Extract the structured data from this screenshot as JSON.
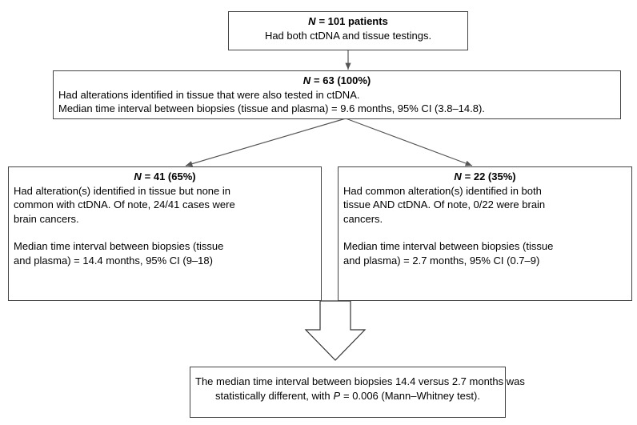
{
  "nodes": [
    {
      "heading": {
        "var": "N",
        "rest": "= 101 patients"
      },
      "paragraphs": [
        [
          "Had both ctDNA and tissue testings."
        ]
      ]
    },
    {
      "heading": {
        "var": "N",
        "rest": "= 63 (100%)"
      },
      "paragraphs": [
        [
          "Had alterations identified in tissue that were also tested in ctDNA.",
          "Median time interval between biopsies (tissue and plasma) = 9.6 months, 95% CI  (3.8–14.8)."
        ]
      ]
    },
    {
      "heading": {
        "var": "N",
        "rest": "= 41 (65%)"
      },
      "paragraphs": [
        [
          "Had alteration(s) identified in tissue but none in",
          "common with ctDNA. Of note, 24/41 cases were",
          "brain cancers."
        ],
        [
          "Median time interval between biopsies (tissue",
          "and plasma) = 14.4 months, 95% CI (9–18)"
        ]
      ]
    },
    {
      "heading": {
        "var": "N",
        "rest": "= 22 (35%)"
      },
      "paragraphs": [
        [
          "Had common alteration(s) identified in both",
          "tissue AND ctDNA. Of note, 0/22 were brain",
          "cancers."
        ],
        [
          "Median time interval between biopsies (tissue",
          "and plasma) = 2.7 months, 95% CI (0.7–9)"
        ]
      ]
    }
  ],
  "conclusion": {
    "line1": "The median time interval between biopsies 14.4 versus 2.7 months was",
    "line2": {
      "before": "statistically different, with",
      "var": "P",
      "after": "= 0.006 (Mann–Whitney test)."
    }
  }
}
